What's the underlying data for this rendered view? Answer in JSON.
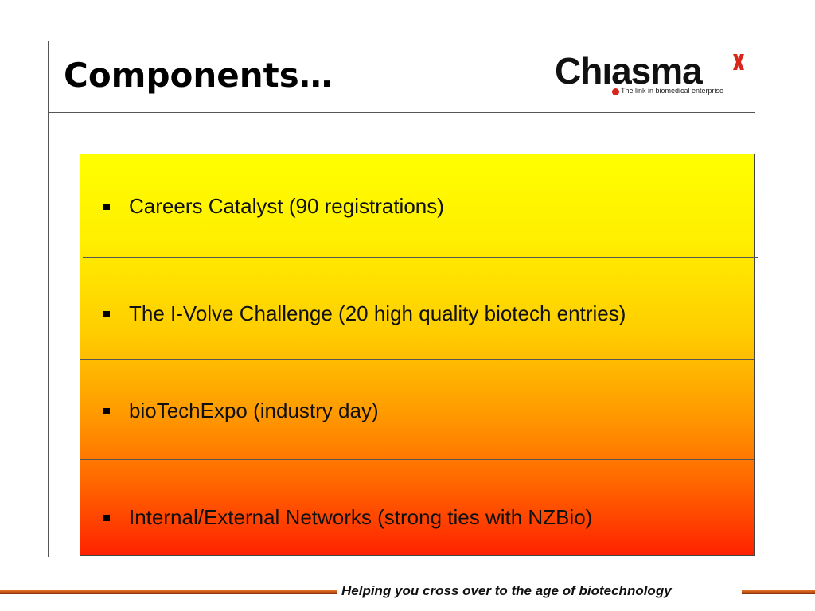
{
  "slide": {
    "title": "Components…"
  },
  "logo": {
    "brand_name": "Chıasma",
    "tagline": "The link in biomedical enterprise",
    "accent_color": "#d8261a",
    "icon": "x-mark-icon"
  },
  "items": [
    {
      "text": "Careers Catalyst (90 registrations)"
    },
    {
      "text": "The I-Volve Challenge (20 high quality biotech entries)"
    },
    {
      "text": "bioTechExpo (industry day)"
    },
    {
      "text": "Internal/External Networks (strong ties with NZBio)"
    }
  ],
  "footer": {
    "tagline": "Helping you cross over to the age of biotechnology"
  },
  "colors": {
    "gradient_top": "#ffff00",
    "gradient_bottom": "#ff2200",
    "footer_bar": "#c05010"
  }
}
